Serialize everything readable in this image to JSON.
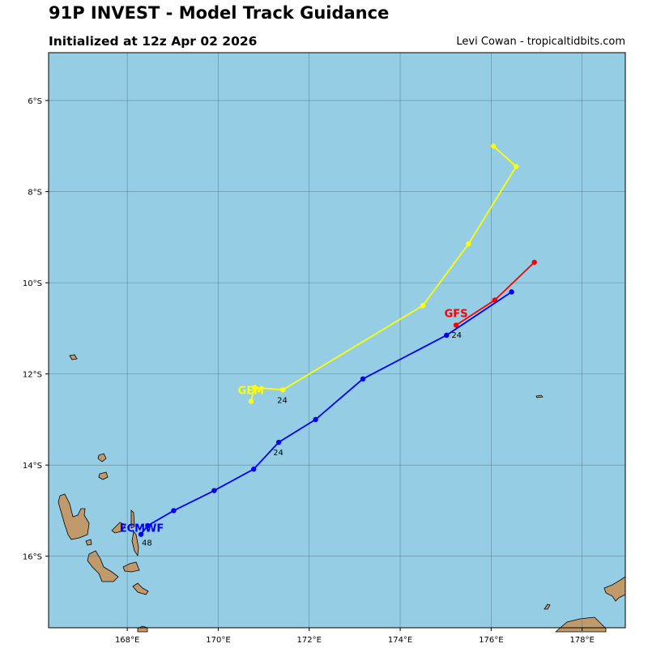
{
  "title": "91P INVEST - Model Track Guidance",
  "subtitle": "Initialized at 12z Apr 02 2026",
  "credit": "Levi Cowan - tropicaltidbits.com",
  "colors": {
    "ocean": "#94cde4",
    "land": "#c19a6b",
    "coast": "#000000",
    "grid": "#4a6f7f"
  },
  "chart_data": {
    "type": "scatter",
    "map": true,
    "xlim": [
      166.27,
      178.95
    ],
    "ylim": [
      -17.57,
      -4.95
    ],
    "x_ticks": [
      168,
      170,
      172,
      174,
      176,
      178
    ],
    "x_tick_labels": [
      "168°E",
      "170°E",
      "172°E",
      "174°E",
      "176°E",
      "178°E"
    ],
    "y_ticks": [
      -6,
      -8,
      -10,
      -12,
      -14,
      -16
    ],
    "y_tick_labels": [
      "6°S",
      "8°S",
      "10°S",
      "12°S",
      "14°S",
      "16°S"
    ],
    "grid": true,
    "series": [
      {
        "name": "GFS",
        "color": "#ff0000",
        "points": [
          [
            176.95,
            -9.55
          ],
          [
            176.08,
            -10.38
          ],
          [
            175.23,
            -10.93
          ]
        ],
        "label_at": [
          175.23,
          -10.93
        ],
        "hour_labels": []
      },
      {
        "name": "ECMWF",
        "color": "#0000ff",
        "points": [
          [
            176.45,
            -10.2
          ],
          [
            175.02,
            -11.15
          ],
          [
            173.18,
            -12.11
          ],
          [
            172.14,
            -13.0
          ],
          [
            171.33,
            -13.5
          ],
          [
            170.78,
            -14.09
          ],
          [
            169.91,
            -14.56
          ],
          [
            169.02,
            -15.0
          ],
          [
            168.45,
            -15.33
          ],
          [
            168.3,
            -15.52
          ]
        ],
        "label_at": [
          168.3,
          -15.52
        ],
        "hour_labels": [
          {
            "text": "24",
            "at": [
              175.02,
              -11.15
            ]
          },
          {
            "text": "24",
            "at": [
              171.33,
              -13.5
            ]
          },
          {
            "text": "48",
            "at": [
              168.3,
              -15.52
            ]
          }
        ]
      },
      {
        "name": "GEM",
        "color": "#ffff00",
        "points": [
          [
            176.05,
            -7.0
          ],
          [
            176.55,
            -7.45
          ],
          [
            175.5,
            -9.15
          ],
          [
            174.5,
            -10.5
          ],
          [
            171.42,
            -12.35
          ],
          [
            170.8,
            -12.3
          ],
          [
            170.72,
            -12.6
          ]
        ],
        "label_at": [
          170.72,
          -12.6
        ],
        "hour_labels": [
          {
            "text": "24",
            "at": [
              171.42,
              -12.35
            ]
          }
        ]
      }
    ]
  }
}
